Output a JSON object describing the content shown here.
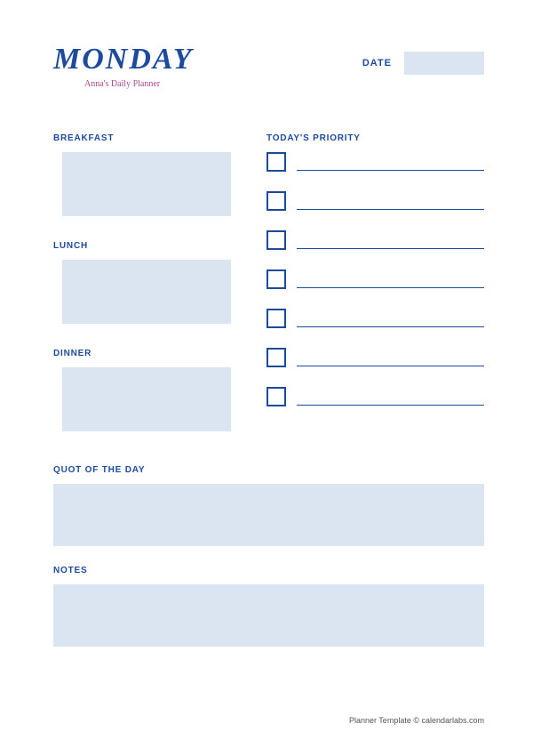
{
  "colors": {
    "primary": "#1e4a9e",
    "accent": "#a94a8c",
    "fill": "#dbe5f1",
    "background": "#ffffff"
  },
  "header": {
    "day": "MONDAY",
    "subtitle": "Anna's Daily Planner",
    "date_label": "DATE"
  },
  "meals": {
    "breakfast_label": "BREAKFAST",
    "lunch_label": "LUNCH",
    "dinner_label": "DINNER"
  },
  "priority": {
    "label": "TODAY'S PRIORITY",
    "count": 7
  },
  "quote": {
    "label": "QUOT OF THE DAY"
  },
  "notes": {
    "label": "NOTES"
  },
  "footer": {
    "text": "Planner Template © calendarlabs.com"
  }
}
